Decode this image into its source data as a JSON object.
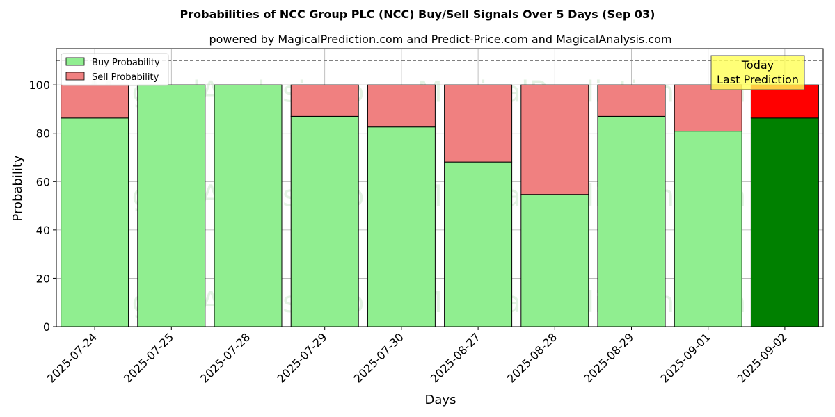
{
  "chart_data": {
    "type": "bar",
    "stacked": true,
    "title": "Probabilities of NCC Group PLC (NCC) Buy/Sell Signals Over 5 Days (Sep 03)",
    "subtitle": "powered by MagicalPrediction.com and Predict-Price.com and MagicalAnalysis.com",
    "xlabel": "Days",
    "ylabel": "Probability",
    "ylim": [
      0,
      115
    ],
    "yticks": [
      0,
      20,
      40,
      60,
      80,
      100
    ],
    "reference_line": 110,
    "grid": true,
    "legend_position": "top-left",
    "categories": [
      "2025-07-24",
      "2025-07-25",
      "2025-07-28",
      "2025-07-29",
      "2025-07-30",
      "2025-08-27",
      "2025-08-28",
      "2025-08-29",
      "2025-09-01",
      "2025-09-02"
    ],
    "series": [
      {
        "name": "Buy Probability",
        "color": "#90ee90",
        "highlight_color": "#008000",
        "values": [
          86.3,
          100,
          100,
          87,
          82.6,
          68.1,
          54.7,
          87,
          80.9,
          86.3
        ]
      },
      {
        "name": "Sell Probability",
        "color": "#f08080",
        "highlight_color": "#ff0000",
        "values": [
          13.7,
          0,
          0,
          13,
          17.4,
          31.9,
          45.3,
          13,
          19.1,
          13.7
        ]
      }
    ],
    "highlight_index": 9,
    "annotation": {
      "line1": "Today",
      "line2": "Last Prediction",
      "background": "#ffff55"
    },
    "watermarks": [
      "MagicalAnalysis.com",
      "MagicalPrediction.com"
    ]
  }
}
